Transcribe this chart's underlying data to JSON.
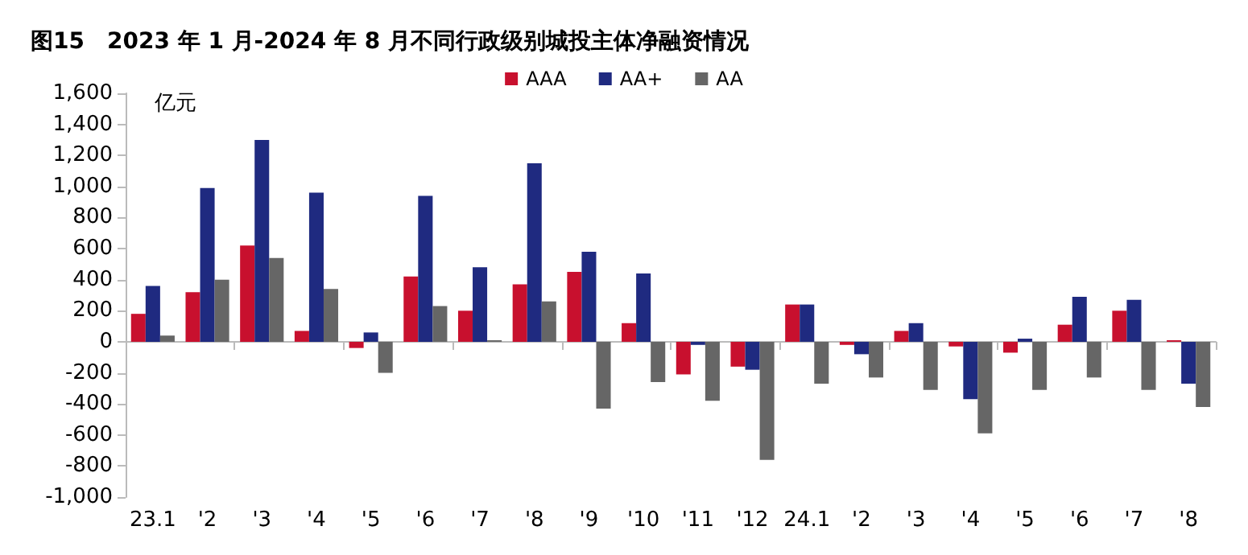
{
  "chart_data": {
    "type": "bar",
    "title": "图15　2023 年 1 月-2024 年 8 月不同行政级别城投主体净融资情况",
    "ylabel": "亿元",
    "categories": [
      "23.1",
      "'2",
      "'3",
      "'4",
      "'5",
      "'6",
      "'7",
      "'8",
      "'9",
      "'10",
      "'11",
      "'12",
      "24.1",
      "'2",
      "'3",
      "'4",
      "'5",
      "'6",
      "'7",
      "'8"
    ],
    "series": [
      {
        "name": "AAA",
        "color": "#c8102e",
        "values": [
          180,
          320,
          620,
          70,
          -40,
          420,
          200,
          370,
          450,
          120,
          -210,
          -160,
          240,
          -20,
          70,
          -30,
          -70,
          110,
          200,
          10
        ]
      },
      {
        "name": "AA+",
        "color": "#1f2a80",
        "values": [
          360,
          990,
          1300,
          960,
          60,
          940,
          480,
          1150,
          580,
          440,
          -20,
          -180,
          240,
          -80,
          120,
          -370,
          20,
          290,
          270,
          -270
        ]
      },
      {
        "name": "AA",
        "color": "#666666",
        "values": [
          40,
          400,
          540,
          340,
          -200,
          230,
          10,
          260,
          -430,
          -260,
          -380,
          -760,
          -270,
          -230,
          -310,
          -590,
          -310,
          -230,
          -310,
          -420
        ]
      }
    ],
    "ylim": [
      -1000,
      1600
    ],
    "yticks": [
      {
        "value": -1000,
        "label": "-1,000"
      },
      -800,
      -600,
      -400,
      -200,
      0,
      200,
      400,
      600,
      800,
      {
        "value": 1000,
        "label": "1,000"
      },
      {
        "value": 1200,
        "label": "1,200"
      },
      {
        "value": 1400,
        "label": "1,400"
      },
      {
        "value": 1600,
        "label": "1,600"
      }
    ],
    "legend": "top"
  }
}
